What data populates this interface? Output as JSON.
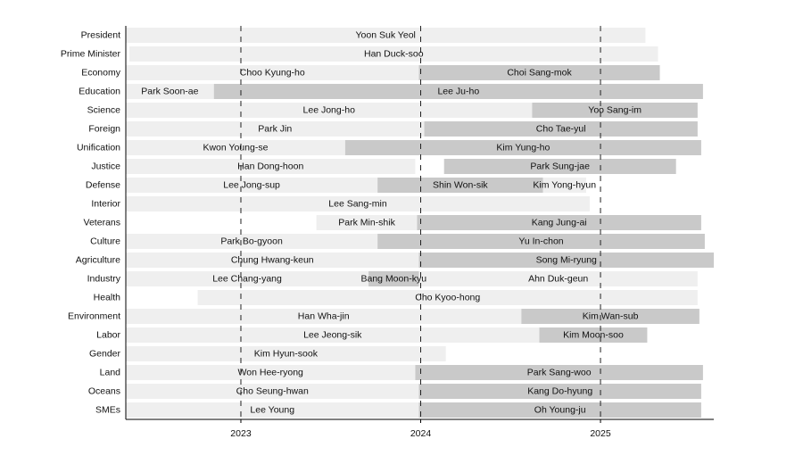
{
  "chart_data": {
    "type": "timeline",
    "xlim": [
      2022.36,
      2025.63
    ],
    "xticks": [
      2023,
      2024,
      2025
    ],
    "grid": true,
    "colors": [
      "#efefef",
      "#c9c9c9"
    ],
    "rows": [
      {
        "label": "President",
        "terms": [
          {
            "name": "Yoon Suk Yeol",
            "start": 2022.36,
            "end": 2025.25
          }
        ]
      },
      {
        "label": "Prime Minister",
        "terms": [
          {
            "name": "Han Duck-soo",
            "start": 2022.38,
            "end": 2025.32
          }
        ]
      },
      {
        "label": "Economy",
        "terms": [
          {
            "name": "Choo Kyung-ho",
            "start": 2022.36,
            "end": 2023.99
          },
          {
            "name": "Choi Sang-mok",
            "start": 2023.99,
            "end": 2025.33
          }
        ]
      },
      {
        "label": "Education",
        "terms": [
          {
            "name": "Park Soon-ae",
            "start": 2022.36,
            "end": 2022.85
          },
          {
            "name": "Lee Ju-ho",
            "start": 2022.85,
            "end": 2025.57
          }
        ]
      },
      {
        "label": "Science",
        "terms": [
          {
            "name": "Lee Jong-ho",
            "start": 2022.36,
            "end": 2024.62
          },
          {
            "name": "Yoo Sang-im",
            "start": 2024.62,
            "end": 2025.54
          }
        ]
      },
      {
        "label": "Foreign",
        "terms": [
          {
            "name": "Park Jin",
            "start": 2022.36,
            "end": 2024.02
          },
          {
            "name": "Cho Tae-yul",
            "start": 2024.02,
            "end": 2025.54
          }
        ]
      },
      {
        "label": "Unification",
        "terms": [
          {
            "name": "Kwon Young-se",
            "start": 2022.36,
            "end": 2023.58
          },
          {
            "name": "Kim Yung-ho",
            "start": 2023.58,
            "end": 2025.56
          }
        ]
      },
      {
        "label": "Justice",
        "terms": [
          {
            "name": "Han Dong-hoon",
            "start": 2022.36,
            "end": 2023.97
          },
          {
            "name": "Park Sung-jae",
            "start": 2024.13,
            "end": 2025.42
          }
        ]
      },
      {
        "label": "Defense",
        "terms": [
          {
            "name": "Lee Jong-sup",
            "start": 2022.36,
            "end": 2023.76
          },
          {
            "name": "Shin Won-sik",
            "start": 2023.76,
            "end": 2024.68
          },
          {
            "name": "Kim Yong-hyun",
            "start": 2024.68,
            "end": 2024.92
          }
        ]
      },
      {
        "label": "Interior",
        "terms": [
          {
            "name": "Lee Sang-min",
            "start": 2022.36,
            "end": 2024.94
          }
        ]
      },
      {
        "label": "Veterans",
        "terms": [
          {
            "name": "Park Min-shik",
            "start": 2023.42,
            "end": 2023.98
          },
          {
            "name": "Kang Jung-ai",
            "start": 2023.98,
            "end": 2025.56
          }
        ]
      },
      {
        "label": "Culture",
        "terms": [
          {
            "name": "Park Bo-gyoon",
            "start": 2022.36,
            "end": 2023.76
          },
          {
            "name": "Yu In-chon",
            "start": 2023.76,
            "end": 2025.58
          }
        ]
      },
      {
        "label": "Agriculture",
        "terms": [
          {
            "name": "Chung Hwang-keun",
            "start": 2022.36,
            "end": 2023.99
          },
          {
            "name": "Song Mi-ryung",
            "start": 2023.99,
            "end": 2025.63
          }
        ]
      },
      {
        "label": "Industry",
        "terms": [
          {
            "name": "Lee Chang-yang",
            "start": 2022.36,
            "end": 2023.71
          },
          {
            "name": "Bang Moon-kyu",
            "start": 2023.71,
            "end": 2023.99
          },
          {
            "name": "Ahn Duk-geun",
            "start": 2023.99,
            "end": 2025.54
          }
        ]
      },
      {
        "label": "Health",
        "terms": [
          {
            "name": "Cho Kyoo-hong",
            "start": 2022.76,
            "end": 2025.54
          }
        ]
      },
      {
        "label": "Environment",
        "terms": [
          {
            "name": "Han Wha-jin",
            "start": 2022.36,
            "end": 2024.56
          },
          {
            "name": "Kim Wan-sub",
            "start": 2024.56,
            "end": 2025.55
          }
        ]
      },
      {
        "label": "Labor",
        "terms": [
          {
            "name": "Lee Jeong-sik",
            "start": 2022.36,
            "end": 2024.66
          },
          {
            "name": "Kim Moon-soo",
            "start": 2024.66,
            "end": 2025.26
          }
        ]
      },
      {
        "label": "Gender",
        "terms": [
          {
            "name": "Kim Hyun-sook",
            "start": 2022.36,
            "end": 2024.14
          }
        ]
      },
      {
        "label": "Land",
        "terms": [
          {
            "name": "Won Hee-ryong",
            "start": 2022.36,
            "end": 2023.97
          },
          {
            "name": "Park Sang-woo",
            "start": 2023.97,
            "end": 2025.57
          }
        ]
      },
      {
        "label": "Oceans",
        "terms": [
          {
            "name": "Cho Seung-hwan",
            "start": 2022.36,
            "end": 2023.99
          },
          {
            "name": "Kang Do-hyung",
            "start": 2023.99,
            "end": 2025.56
          }
        ]
      },
      {
        "label": "SMEs",
        "terms": [
          {
            "name": "Lee Young",
            "start": 2022.36,
            "end": 2023.99
          },
          {
            "name": "Oh Young-ju",
            "start": 2023.99,
            "end": 2025.56
          }
        ]
      }
    ]
  }
}
